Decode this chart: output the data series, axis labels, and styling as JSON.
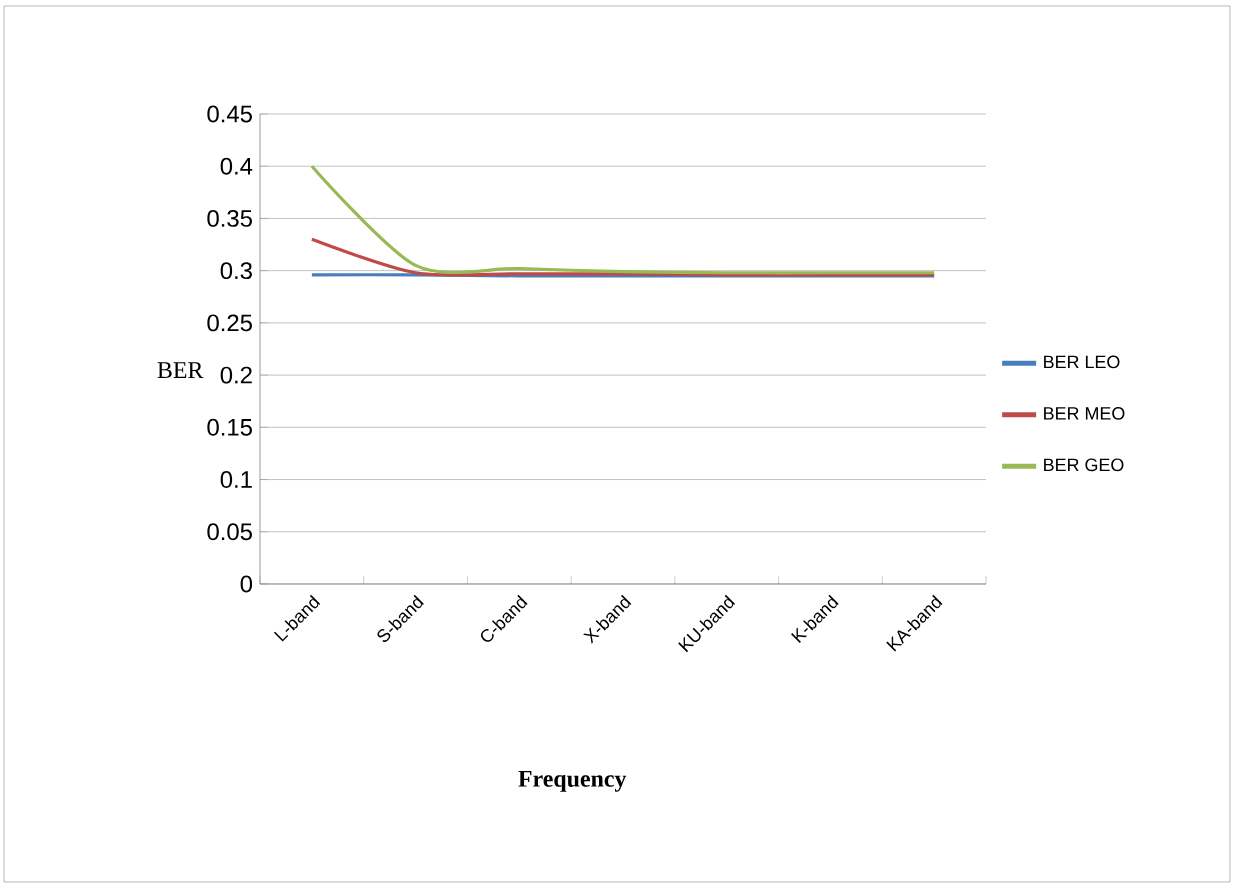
{
  "chart_data": {
    "type": "line",
    "xlabel": "Frequency",
    "ylabel": "BER",
    "categories": [
      "L-band",
      "S-band",
      "C-band",
      "X-band",
      "KU-band",
      "K-band",
      "KA-band"
    ],
    "series": [
      {
        "name": "BER LEO",
        "color": "#4a7ebb",
        "values": [
          0.296,
          0.296,
          0.295,
          0.295,
          0.295,
          0.295,
          0.295
        ]
      },
      {
        "name": "BER MEO",
        "color": "#be4b48",
        "values": [
          0.33,
          0.298,
          0.297,
          0.297,
          0.296,
          0.296,
          0.296
        ]
      },
      {
        "name": "BER GEO",
        "color": "#98b954",
        "values": [
          0.4,
          0.305,
          0.302,
          0.299,
          0.298,
          0.298,
          0.298
        ]
      }
    ],
    "ylim": [
      0,
      0.45
    ],
    "yticks": [
      0,
      0.05,
      0.1,
      0.15,
      0.2,
      0.25,
      0.3,
      0.35,
      0.4,
      0.45
    ],
    "grid": "y",
    "legend": "right",
    "marker": "none",
    "line_style": "solid"
  }
}
